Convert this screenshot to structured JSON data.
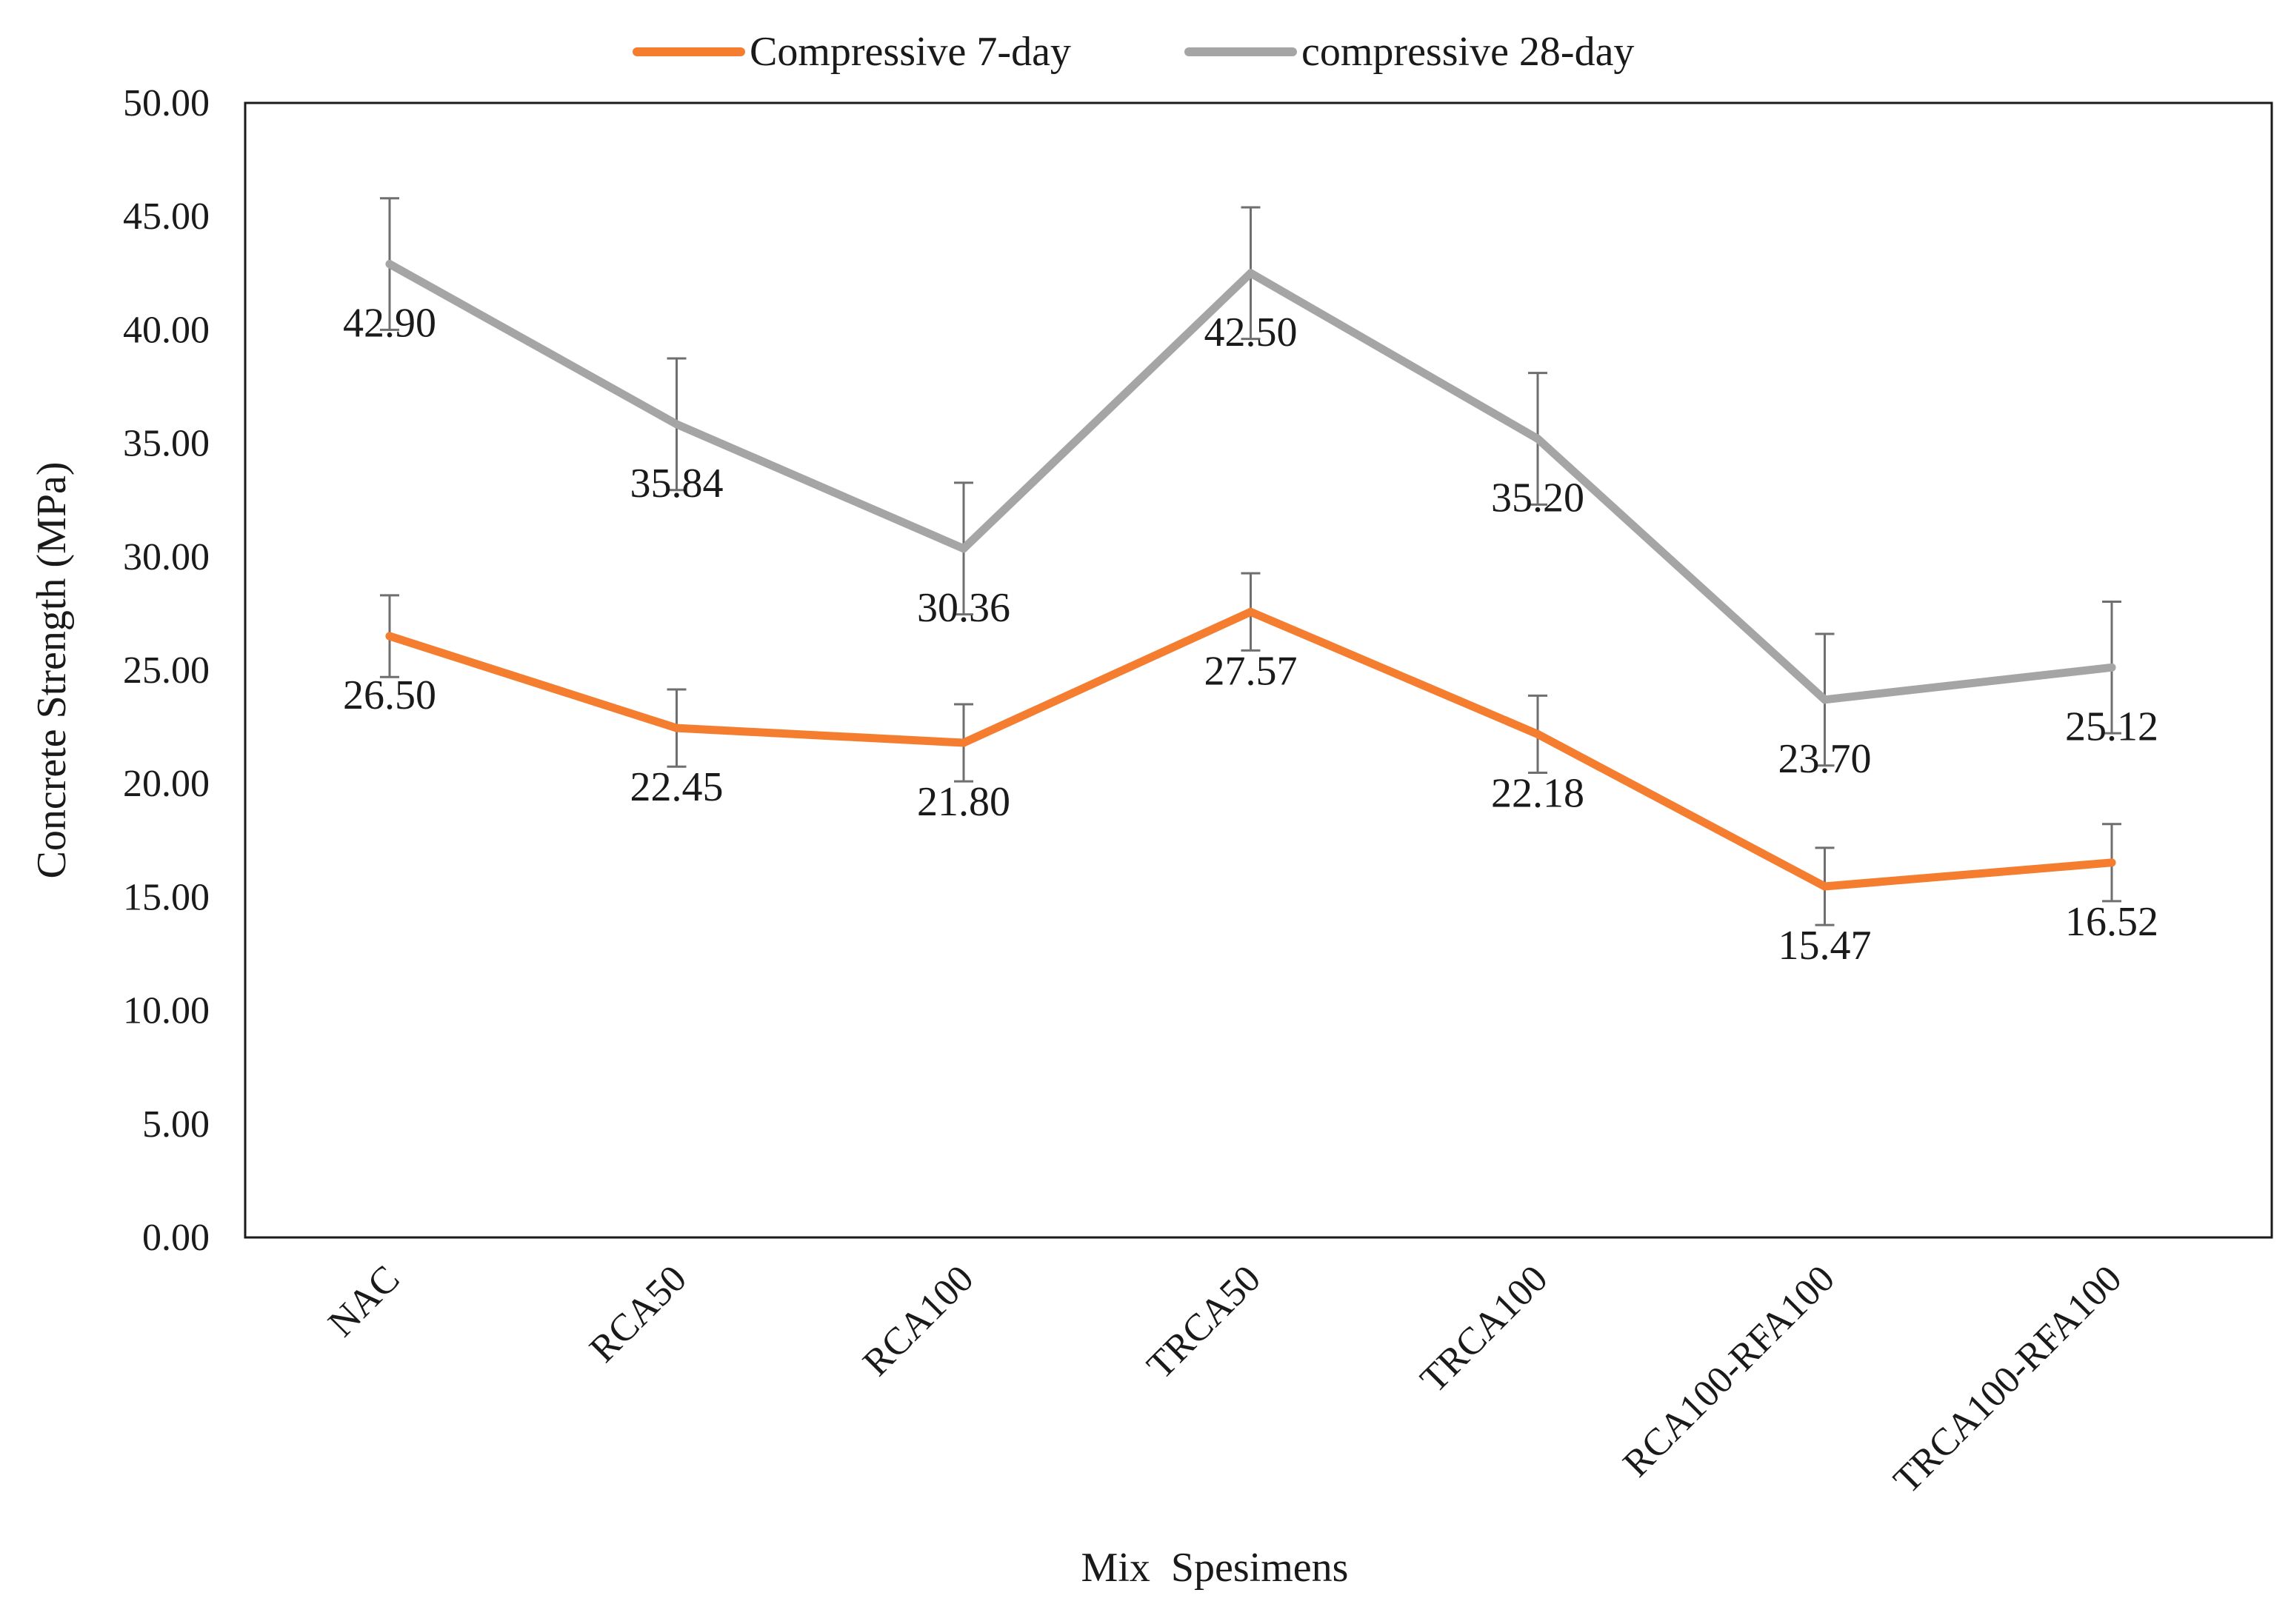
{
  "chart_data": {
    "type": "line",
    "title": "",
    "xlabel": "Mix  Spesimens",
    "ylabel": "Concrete Strength (MPa)",
    "ylim": [
      0,
      50
    ],
    "ytick_step": 5,
    "ytick_labels": [
      "0.00",
      "5.00",
      "10.00",
      "15.00",
      "20.00",
      "25.00",
      "30.00",
      "35.00",
      "40.00",
      "45.00",
      "50.00"
    ],
    "categories": [
      "NAC",
      "RCA50",
      "RCA100",
      "TRCA50",
      "TRCA100",
      "RCA100-RFA100",
      "TRCA100-RFA100"
    ],
    "grid": false,
    "legend_position": "top-center",
    "series": [
      {
        "name": "Compressive 7-day",
        "color": "#f47d2f",
        "values": [
          26.5,
          22.45,
          21.8,
          27.57,
          22.18,
          15.47,
          16.52
        ],
        "labels": [
          "26.50",
          "22.45",
          "21.80",
          "27.57",
          "22.18",
          "15.47",
          "16.52"
        ],
        "error": [
          1.8,
          1.7,
          1.7,
          1.7,
          1.7,
          1.7,
          1.7
        ]
      },
      {
        "name": "compressive 28-day",
        "color": "#a5a5a5",
        "values": [
          42.9,
          35.84,
          30.36,
          42.5,
          35.2,
          23.7,
          25.12
        ],
        "labels": [
          "42.90",
          "35.84",
          "30.36",
          "42.50",
          "35.20",
          "23.70",
          "25.12"
        ],
        "error": [
          2.9,
          2.9,
          2.9,
          2.9,
          2.9,
          2.9,
          2.9
        ]
      }
    ]
  }
}
